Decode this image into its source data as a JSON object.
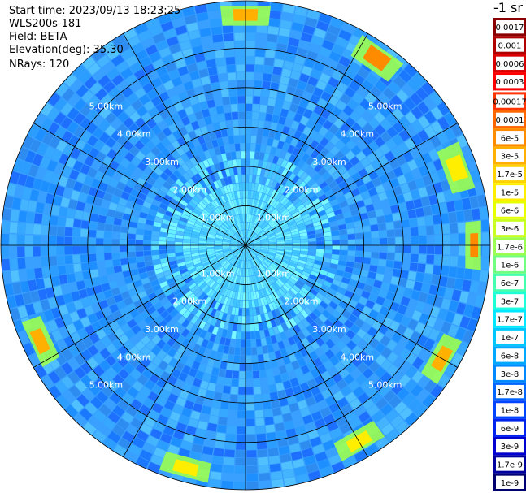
{
  "info": {
    "start_time": "Start time: 2023/09/13 18:23:25",
    "device": "WLS200s-181",
    "field": "Field: BETA",
    "elevation": "Elevation(deg): 35.30",
    "nrays": "NRays: 120"
  },
  "unit_label": "-1 sr",
  "colors": {
    "background_ring": "#3aa0ff",
    "ring_line": "#000000",
    "range_label": "#ffffff"
  },
  "chart_data": {
    "type": "heatmap",
    "projection": "polar (PPI scan)",
    "field": "BETA",
    "n_rays": 120,
    "range_rings_km": [
      1.0,
      2.0,
      3.0,
      4.0,
      5.0
    ],
    "range_labels": [
      "1.00km",
      "2.00km",
      "3.00km",
      "4.00km",
      "5.00km"
    ],
    "max_range_km": 6.2,
    "radial_lines": 12,
    "colorbar": {
      "ticks": [
        "0.0017",
        "0.001",
        "0.0006",
        "0.0003",
        "0.00017",
        "0.0001",
        "6e-5",
        "3e-5",
        "1.7e-5",
        "1e-5",
        "6e-6",
        "3e-6",
        "1.7e-6",
        "1e-6",
        "6e-7",
        "3e-7",
        "1.7e-7",
        "1e-7",
        "6e-8",
        "3e-8",
        "1.7e-8",
        "1e-8",
        "6e-9",
        "3e-9",
        "1.7e-9",
        "1e-9"
      ],
      "colors": [
        "#8b0000",
        "#b00000",
        "#d80000",
        "#ff0000",
        "#ff3300",
        "#ff6600",
        "#ff8c00",
        "#ffb000",
        "#ffd200",
        "#ffee00",
        "#e8ff00",
        "#c8ff20",
        "#9cff50",
        "#70ff80",
        "#44ffb0",
        "#1effd8",
        "#00e8ff",
        "#00c8ff",
        "#00a8ff",
        "#0088ff",
        "#0066ff",
        "#0044ff",
        "#0022ee",
        "#0000d0",
        "#0000a0",
        "#000070"
      ]
    },
    "high_backscatter_sectors": [
      {
        "azimuth_deg": 0,
        "range_km": [
          5.6,
          6.1
        ],
        "level": "3e-5"
      },
      {
        "azimuth_deg": 35,
        "range_km": [
          5.5,
          6.1
        ],
        "level": "6e-5"
      },
      {
        "azimuth_deg": 70,
        "range_km": [
          5.4,
          6.0
        ],
        "level": "1e-5"
      },
      {
        "azimuth_deg": 90,
        "range_km": [
          5.6,
          6.0
        ],
        "level": "6e-5"
      },
      {
        "azimuth_deg": 120,
        "range_km": [
          5.5,
          6.0
        ],
        "level": "3e-5"
      },
      {
        "azimuth_deg": 150,
        "range_km": [
          5.5,
          6.0
        ],
        "level": "1e-5"
      },
      {
        "azimuth_deg": 195,
        "range_km": [
          5.6,
          6.1
        ],
        "level": "1e-5"
      },
      {
        "azimuth_deg": 245,
        "range_km": [
          5.5,
          6.0
        ],
        "level": "3e-5"
      }
    ]
  }
}
